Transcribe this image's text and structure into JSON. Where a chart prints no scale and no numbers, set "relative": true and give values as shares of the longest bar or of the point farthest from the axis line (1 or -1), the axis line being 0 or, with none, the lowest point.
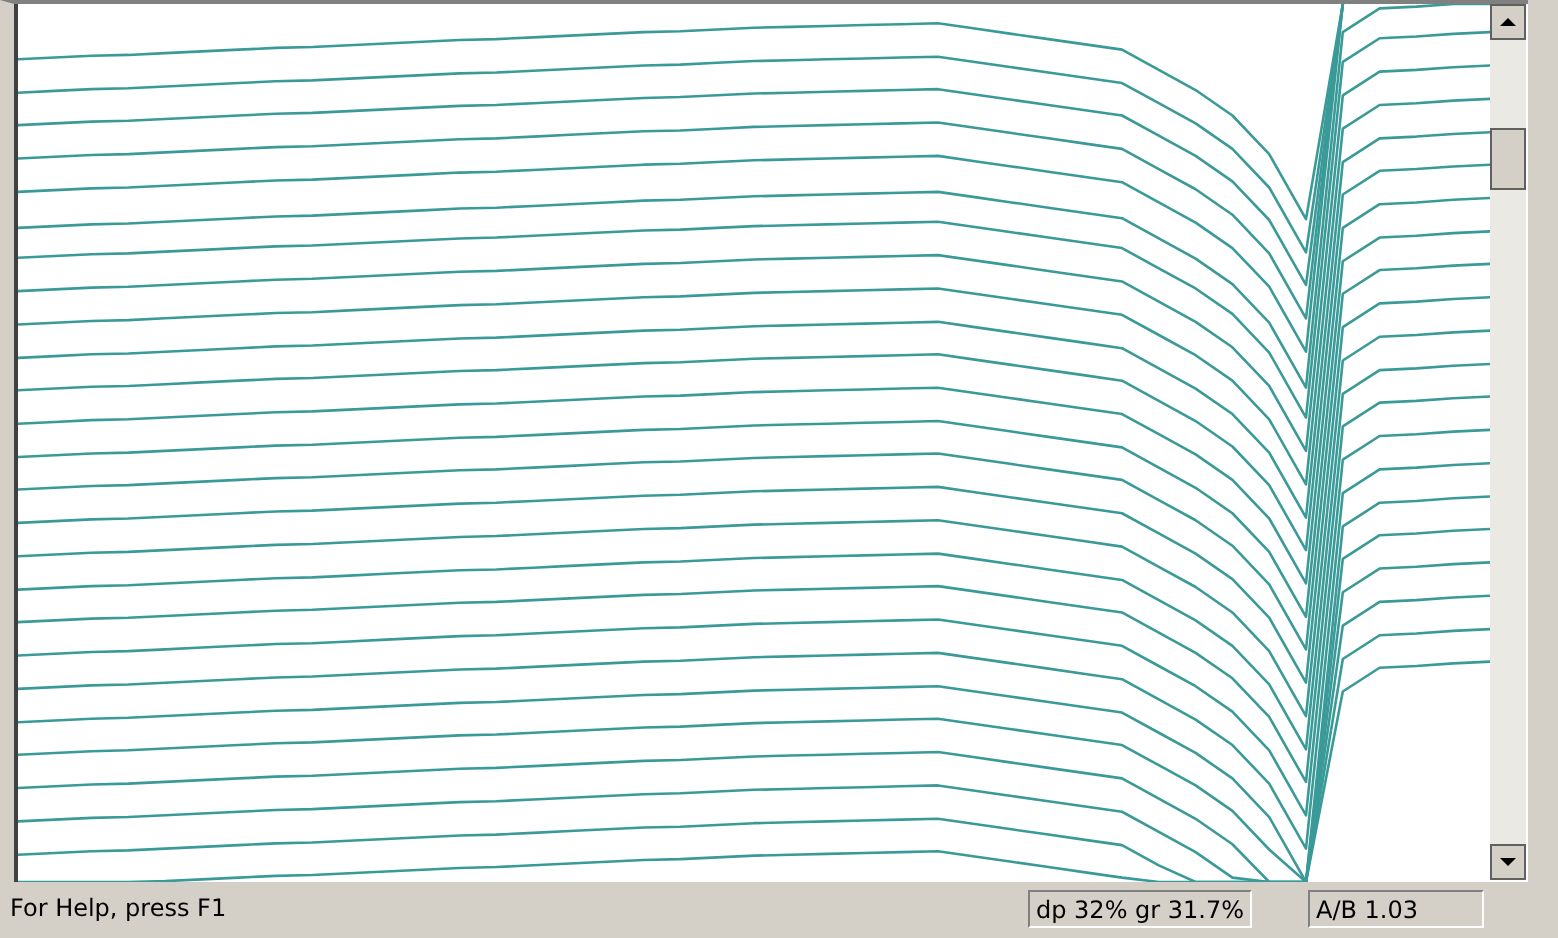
{
  "chart_data": {
    "type": "line",
    "relative": true,
    "tick_labels": false,
    "marker": "none",
    "line_style": "solid",
    "categories": [
      null,
      null,
      null,
      null,
      null,
      null,
      null,
      null,
      null,
      null,
      null,
      null,
      null,
      null,
      null,
      null,
      null,
      null,
      null,
      null,
      null,
      null,
      null,
      null,
      null,
      null,
      null,
      null,
      null,
      null,
      null,
      null,
      null,
      null,
      null,
      null,
      null,
      null,
      null,
      null,
      null
    ],
    "annotations": [
      "For Help, press F1",
      "dp 32% gr 31.7%",
      "A/B 1.03"
    ],
    "series": [
      {
        "color": "#3a9a98",
        "values": [
          0.937,
          0.939,
          0.941,
          0.942,
          0.944,
          0.946,
          0.948,
          0.95,
          0.951,
          0.953,
          0.955,
          0.957,
          0.959,
          0.96,
          0.962,
          0.964,
          0.966,
          0.968,
          0.969,
          0.971,
          0.973,
          0.974,
          0.975,
          0.976,
          0.977,
          0.978,
          0.972,
          0.966,
          0.96,
          0.954,
          0.948,
          0.925,
          0.902,
          0.873,
          0.829,
          0.755,
          1,
          null,
          null,
          null,
          null
        ]
      },
      {
        "color": "#3a9a98",
        "values": [
          0.899,
          0.901,
          0.903,
          0.904,
          0.906,
          0.908,
          0.91,
          0.912,
          0.913,
          0.915,
          0.917,
          0.919,
          0.921,
          0.922,
          0.924,
          0.926,
          0.928,
          0.93,
          0.931,
          0.933,
          0.935,
          0.936,
          0.937,
          0.938,
          0.939,
          0.94,
          0.934,
          0.928,
          0.922,
          0.916,
          0.91,
          0.887,
          0.864,
          0.835,
          0.791,
          0.717,
          1,
          null,
          null,
          null,
          null
        ]
      },
      {
        "color": "#3a9a98",
        "values": [
          0.862,
          0.864,
          0.866,
          0.867,
          0.869,
          0.871,
          0.873,
          0.875,
          0.876,
          0.878,
          0.88,
          0.882,
          0.884,
          0.885,
          0.887,
          0.889,
          0.891,
          0.893,
          0.894,
          0.896,
          0.898,
          0.899,
          0.9,
          0.901,
          0.902,
          0.903,
          0.897,
          0.891,
          0.885,
          0.879,
          0.873,
          0.85,
          0.827,
          0.798,
          0.754,
          0.68,
          1,
          null,
          null,
          null,
          null
        ]
      },
      {
        "color": "#3a9a98",
        "values": [
          0.824,
          0.826,
          0.828,
          0.829,
          0.831,
          0.833,
          0.835,
          0.837,
          0.838,
          0.84,
          0.842,
          0.844,
          0.846,
          0.847,
          0.849,
          0.851,
          0.853,
          0.855,
          0.856,
          0.858,
          0.86,
          0.861,
          0.862,
          0.863,
          0.864,
          0.865,
          0.859,
          0.853,
          0.847,
          0.841,
          0.835,
          0.812,
          0.789,
          0.76,
          0.716,
          0.642,
          1,
          null,
          null,
          null,
          null
        ]
      },
      {
        "color": "#3a9a98",
        "values": [
          0.786,
          0.788,
          0.79,
          0.791,
          0.793,
          0.795,
          0.797,
          0.799,
          0.8,
          0.802,
          0.804,
          0.806,
          0.808,
          0.809,
          0.811,
          0.813,
          0.815,
          0.817,
          0.818,
          0.82,
          0.822,
          0.823,
          0.824,
          0.825,
          0.826,
          0.827,
          0.821,
          0.815,
          0.809,
          0.803,
          0.797,
          0.774,
          0.751,
          0.722,
          0.678,
          0.604,
          1,
          null,
          null,
          null,
          null
        ]
      },
      {
        "color": "#3a9a98",
        "values": [
          0.745,
          0.747,
          0.749,
          0.75,
          0.752,
          0.754,
          0.756,
          0.758,
          0.759,
          0.761,
          0.763,
          0.765,
          0.767,
          0.768,
          0.77,
          0.772,
          0.774,
          0.776,
          0.777,
          0.779,
          0.781,
          0.782,
          0.783,
          0.784,
          0.785,
          0.786,
          0.78,
          0.774,
          0.768,
          0.762,
          0.756,
          0.733,
          0.71,
          0.681,
          0.637,
          0.563,
          0.968,
          0.995,
          0.997,
          1,
          1
        ]
      },
      {
        "color": "#3a9a98",
        "values": [
          0.711,
          0.713,
          0.715,
          0.716,
          0.718,
          0.72,
          0.722,
          0.724,
          0.725,
          0.727,
          0.729,
          0.731,
          0.733,
          0.734,
          0.736,
          0.738,
          0.74,
          0.742,
          0.743,
          0.745,
          0.747,
          0.748,
          0.749,
          0.75,
          0.751,
          0.752,
          0.746,
          0.74,
          0.734,
          0.728,
          0.722,
          0.699,
          0.676,
          0.647,
          0.603,
          0.529,
          0.934,
          0.961,
          0.963,
          0.966,
          0.968
        ]
      },
      {
        "color": "#3a9a98",
        "values": [
          0.673,
          0.675,
          0.677,
          0.678,
          0.68,
          0.682,
          0.684,
          0.686,
          0.687,
          0.689,
          0.691,
          0.693,
          0.695,
          0.696,
          0.698,
          0.7,
          0.702,
          0.704,
          0.705,
          0.707,
          0.709,
          0.71,
          0.711,
          0.712,
          0.713,
          0.714,
          0.708,
          0.702,
          0.696,
          0.69,
          0.684,
          0.661,
          0.638,
          0.609,
          0.565,
          0.491,
          0.896,
          0.923,
          0.925,
          0.928,
          0.93
        ]
      },
      {
        "color": "#3a9a98",
        "values": [
          0.635,
          0.637,
          0.639,
          0.64,
          0.642,
          0.644,
          0.646,
          0.648,
          0.649,
          0.651,
          0.653,
          0.655,
          0.657,
          0.658,
          0.66,
          0.662,
          0.664,
          0.666,
          0.667,
          0.669,
          0.671,
          0.672,
          0.673,
          0.674,
          0.675,
          0.676,
          0.67,
          0.664,
          0.658,
          0.652,
          0.646,
          0.623,
          0.6,
          0.571,
          0.527,
          0.453,
          0.858,
          0.885,
          0.887,
          0.89,
          0.892
        ]
      },
      {
        "color": "#3a9a98",
        "values": [
          0.597,
          0.599,
          0.601,
          0.602,
          0.604,
          0.606,
          0.608,
          0.61,
          0.611,
          0.613,
          0.615,
          0.617,
          0.619,
          0.62,
          0.622,
          0.624,
          0.626,
          0.628,
          0.629,
          0.631,
          0.633,
          0.634,
          0.635,
          0.636,
          0.637,
          0.638,
          0.632,
          0.626,
          0.62,
          0.614,
          0.608,
          0.585,
          0.562,
          0.533,
          0.489,
          0.415,
          0.82,
          0.847,
          0.849,
          0.852,
          0.854
        ]
      },
      {
        "color": "#3a9a98",
        "values": [
          0.56,
          0.562,
          0.564,
          0.565,
          0.567,
          0.569,
          0.571,
          0.573,
          0.574,
          0.576,
          0.578,
          0.58,
          0.582,
          0.583,
          0.585,
          0.587,
          0.589,
          0.591,
          0.592,
          0.594,
          0.596,
          0.597,
          0.598,
          0.599,
          0.6,
          0.601,
          0.595,
          0.589,
          0.583,
          0.577,
          0.571,
          0.548,
          0.525,
          0.496,
          0.452,
          0.378,
          0.783,
          0.81,
          0.812,
          0.815,
          0.817
        ]
      },
      {
        "color": "#3a9a98",
        "values": [
          0.522,
          0.524,
          0.526,
          0.527,
          0.529,
          0.531,
          0.533,
          0.535,
          0.536,
          0.538,
          0.54,
          0.542,
          0.544,
          0.545,
          0.547,
          0.549,
          0.551,
          0.553,
          0.554,
          0.556,
          0.558,
          0.559,
          0.56,
          0.561,
          0.562,
          0.563,
          0.557,
          0.551,
          0.545,
          0.539,
          0.533,
          0.51,
          0.487,
          0.458,
          0.414,
          0.34,
          0.745,
          0.772,
          0.774,
          0.777,
          0.779
        ]
      },
      {
        "color": "#3a9a98",
        "values": [
          0.484,
          0.486,
          0.488,
          0.489,
          0.491,
          0.493,
          0.495,
          0.497,
          0.498,
          0.5,
          0.502,
          0.504,
          0.506,
          0.507,
          0.509,
          0.511,
          0.513,
          0.515,
          0.516,
          0.518,
          0.52,
          0.521,
          0.522,
          0.523,
          0.524,
          0.525,
          0.519,
          0.513,
          0.507,
          0.501,
          0.495,
          0.472,
          0.449,
          0.42,
          0.376,
          0.302,
          0.707,
          0.734,
          0.736,
          0.739,
          0.741
        ]
      },
      {
        "color": "#3a9a98",
        "values": [
          0.447,
          0.449,
          0.451,
          0.452,
          0.454,
          0.456,
          0.458,
          0.46,
          0.461,
          0.463,
          0.465,
          0.467,
          0.469,
          0.47,
          0.472,
          0.474,
          0.476,
          0.478,
          0.479,
          0.481,
          0.483,
          0.484,
          0.485,
          0.486,
          0.487,
          0.488,
          0.482,
          0.476,
          0.47,
          0.464,
          0.458,
          0.435,
          0.412,
          0.383,
          0.339,
          0.265,
          0.67,
          0.697,
          0.699,
          0.702,
          0.704
        ]
      },
      {
        "color": "#3a9a98",
        "values": [
          0.409,
          0.411,
          0.413,
          0.414,
          0.416,
          0.418,
          0.42,
          0.422,
          0.423,
          0.425,
          0.427,
          0.429,
          0.431,
          0.432,
          0.434,
          0.436,
          0.438,
          0.44,
          0.441,
          0.443,
          0.445,
          0.446,
          0.447,
          0.448,
          0.449,
          0.45,
          0.444,
          0.438,
          0.432,
          0.426,
          0.42,
          0.397,
          0.374,
          0.345,
          0.301,
          0.227,
          0.632,
          0.659,
          0.661,
          0.664,
          0.666
        ]
      },
      {
        "color": "#3a9a98",
        "values": [
          0.371,
          0.373,
          0.375,
          0.376,
          0.378,
          0.38,
          0.382,
          0.384,
          0.385,
          0.387,
          0.389,
          0.391,
          0.393,
          0.394,
          0.396,
          0.398,
          0.4,
          0.402,
          0.403,
          0.405,
          0.407,
          0.408,
          0.409,
          0.41,
          0.411,
          0.412,
          0.406,
          0.4,
          0.394,
          0.388,
          0.382,
          0.359,
          0.336,
          0.307,
          0.263,
          0.189,
          0.594,
          0.621,
          0.623,
          0.626,
          0.628
        ]
      },
      {
        "color": "#3a9a98",
        "values": [
          0.333,
          0.335,
          0.337,
          0.338,
          0.34,
          0.342,
          0.344,
          0.346,
          0.347,
          0.349,
          0.351,
          0.353,
          0.355,
          0.356,
          0.358,
          0.36,
          0.362,
          0.364,
          0.365,
          0.367,
          0.369,
          0.37,
          0.371,
          0.372,
          0.373,
          0.374,
          0.368,
          0.362,
          0.356,
          0.35,
          0.344,
          0.321,
          0.298,
          0.269,
          0.225,
          0.151,
          0.556,
          0.583,
          0.585,
          0.588,
          0.59
        ]
      },
      {
        "color": "#3a9a98",
        "values": [
          0.296,
          0.298,
          0.3,
          0.301,
          0.303,
          0.305,
          0.307,
          0.309,
          0.31,
          0.312,
          0.314,
          0.316,
          0.318,
          0.319,
          0.321,
          0.323,
          0.325,
          0.327,
          0.328,
          0.33,
          0.332,
          0.333,
          0.334,
          0.335,
          0.336,
          0.337,
          0.331,
          0.325,
          0.319,
          0.313,
          0.307,
          0.284,
          0.261,
          0.232,
          0.188,
          0.114,
          0.519,
          0.546,
          0.548,
          0.551,
          0.553
        ]
      },
      {
        "color": "#3a9a98",
        "values": [
          0.258,
          0.26,
          0.262,
          0.263,
          0.265,
          0.267,
          0.269,
          0.271,
          0.272,
          0.274,
          0.276,
          0.278,
          0.28,
          0.281,
          0.283,
          0.285,
          0.287,
          0.289,
          0.29,
          0.292,
          0.294,
          0.295,
          0.296,
          0.297,
          0.298,
          0.299,
          0.293,
          0.287,
          0.281,
          0.275,
          0.269,
          0.246,
          0.223,
          0.194,
          0.15,
          0.076,
          0.481,
          0.508,
          0.51,
          0.513,
          0.515
        ]
      },
      {
        "color": "#3a9a98",
        "values": [
          0.22,
          0.222,
          0.224,
          0.225,
          0.227,
          0.229,
          0.231,
          0.233,
          0.234,
          0.236,
          0.238,
          0.24,
          0.242,
          0.243,
          0.245,
          0.247,
          0.249,
          0.251,
          0.252,
          0.254,
          0.256,
          0.257,
          0.258,
          0.259,
          0.26,
          0.261,
          0.255,
          0.249,
          0.243,
          0.237,
          0.231,
          0.208,
          0.185,
          0.156,
          0.112,
          0.038,
          0.443,
          0.47,
          0.472,
          0.475,
          0.477
        ]
      },
      {
        "color": "#3a9a98",
        "values": [
          0.182,
          0.184,
          0.186,
          0.187,
          0.189,
          0.191,
          0.193,
          0.195,
          0.196,
          0.198,
          0.2,
          0.202,
          0.204,
          0.205,
          0.207,
          0.209,
          0.211,
          0.213,
          0.214,
          0.216,
          0.218,
          0.219,
          0.22,
          0.221,
          0.222,
          0.223,
          0.217,
          0.211,
          0.205,
          0.199,
          0.193,
          0.17,
          0.147,
          0.118,
          0.074,
          0,
          0.405,
          0.432,
          0.434,
          0.437,
          0.439
        ]
      },
      {
        "color": "#3a9a98",
        "values": [
          0.145,
          0.147,
          0.149,
          0.15,
          0.152,
          0.154,
          0.156,
          0.158,
          0.159,
          0.161,
          0.163,
          0.165,
          0.167,
          0.168,
          0.17,
          0.172,
          0.174,
          0.176,
          0.177,
          0.179,
          0.181,
          0.182,
          0.183,
          0.184,
          0.185,
          0.186,
          0.18,
          0.174,
          0.168,
          0.162,
          0.156,
          0.133,
          0.11,
          0.081,
          0.037,
          0,
          0.368,
          0.395,
          0.397,
          0.4,
          0.402
        ]
      },
      {
        "color": "#3a9a98",
        "values": [
          0.107,
          0.109,
          0.111,
          0.112,
          0.114,
          0.116,
          0.118,
          0.12,
          0.121,
          0.123,
          0.125,
          0.127,
          0.129,
          0.13,
          0.132,
          0.134,
          0.136,
          0.138,
          0.139,
          0.141,
          0.143,
          0.144,
          0.145,
          0.146,
          0.147,
          0.148,
          0.142,
          0.136,
          0.13,
          0.124,
          0.118,
          0.095,
          0.072,
          0.043,
          0,
          0,
          0.33,
          0.357,
          0.359,
          0.362,
          0.364
        ]
      },
      {
        "color": "#3a9a98",
        "values": [
          0.069,
          0.071,
          0.073,
          0.074,
          0.076,
          0.078,
          0.08,
          0.082,
          0.083,
          0.085,
          0.087,
          0.089,
          0.091,
          0.092,
          0.094,
          0.096,
          0.098,
          0.1,
          0.101,
          0.103,
          0.105,
          0.106,
          0.107,
          0.108,
          0.109,
          0.11,
          0.104,
          0.098,
          0.092,
          0.086,
          0.08,
          0.057,
          0.034,
          0.005,
          0,
          0,
          0.292,
          0.319,
          0.321,
          0.324,
          0.326
        ]
      },
      {
        "color": "#3a9a98",
        "values": [
          0.031,
          0.033,
          0.035,
          0.036,
          0.038,
          0.04,
          0.042,
          0.044,
          0.045,
          0.047,
          0.049,
          0.051,
          0.053,
          0.054,
          0.056,
          0.058,
          0.06,
          0.062,
          0.063,
          0.065,
          0.067,
          0.068,
          0.069,
          0.07,
          0.071,
          0.072,
          0.066,
          0.06,
          0.054,
          0.048,
          0.042,
          0.019,
          0,
          0,
          0,
          0,
          0.254,
          0.281,
          0.283,
          0.286,
          0.288
        ]
      },
      {
        "color": "#3a9a98",
        "values": [
          0,
          0,
          0,
          0,
          0.001,
          0.003,
          0.005,
          0.007,
          0.008,
          0.01,
          0.012,
          0.014,
          0.016,
          0.017,
          0.019,
          0.021,
          0.023,
          0.025,
          0.026,
          0.028,
          0.03,
          0.031,
          0.032,
          0.033,
          0.034,
          0.035,
          0.029,
          0.023,
          0.017,
          0.011,
          0.005,
          0,
          0,
          0,
          0,
          0,
          0.217,
          0.244,
          0.246,
          0.249,
          0.251
        ]
      }
    ]
  }
}
